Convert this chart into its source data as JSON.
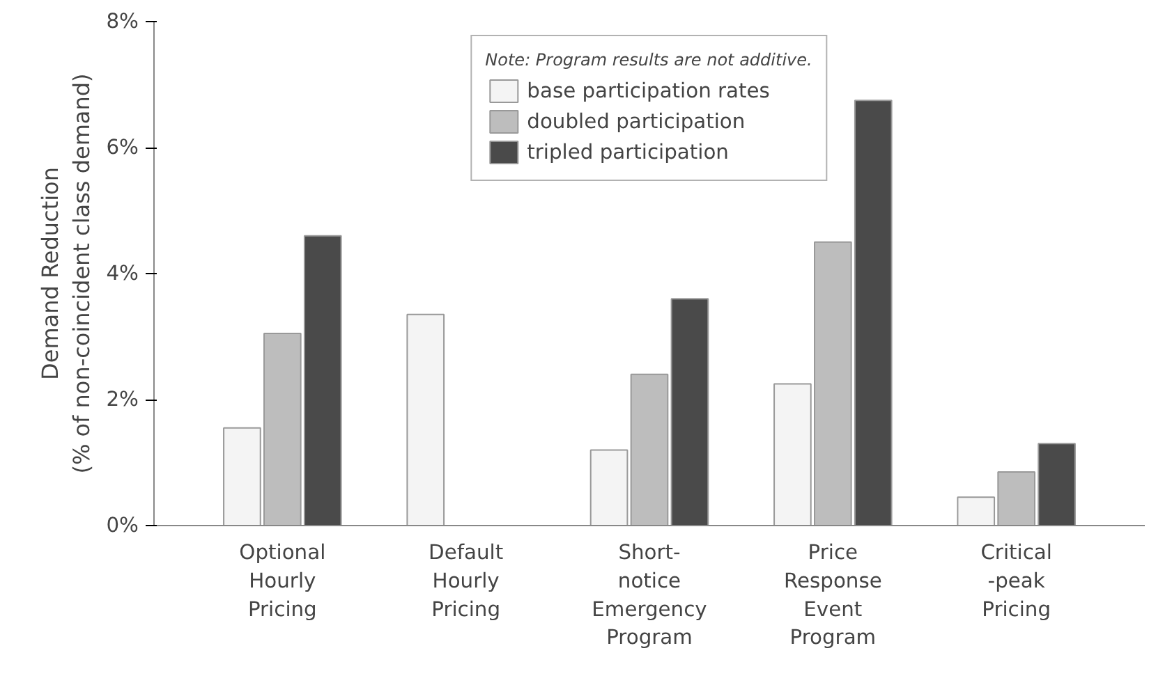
{
  "chart_data": {
    "type": "bar",
    "ylabel": "Demand Reduction\n(% of non-coincident class demand)",
    "legend_title": "Note: Program results are not additive.",
    "categories": [
      "Optional\nHourly\nPricing",
      "Default\nHourly\nPricing",
      "Short-\nnotice\nEmergency\nProgram",
      "Price\nResponse\nEvent\nProgram",
      "Critical\n-peak\nPricing"
    ],
    "series": [
      {
        "name": "base participation rates",
        "color": "#f4f4f4",
        "values": [
          1.55,
          3.35,
          1.2,
          2.25,
          0.45
        ]
      },
      {
        "name": "doubled participation",
        "color": "#bdbdbd",
        "values": [
          3.05,
          null,
          2.4,
          4.5,
          0.85
        ]
      },
      {
        "name": "tripled participation",
        "color": "#4a4a4a",
        "values": [
          4.6,
          null,
          3.6,
          6.75,
          1.3
        ]
      }
    ],
    "ylim": [
      0,
      8
    ],
    "yticks": [
      {
        "value": 0,
        "label": "0%"
      },
      {
        "value": 2,
        "label": "2%"
      },
      {
        "value": 4,
        "label": "4%"
      },
      {
        "value": 6,
        "label": "6%"
      },
      {
        "value": 8,
        "label": "8%"
      }
    ],
    "grid": false,
    "legend": "top"
  }
}
